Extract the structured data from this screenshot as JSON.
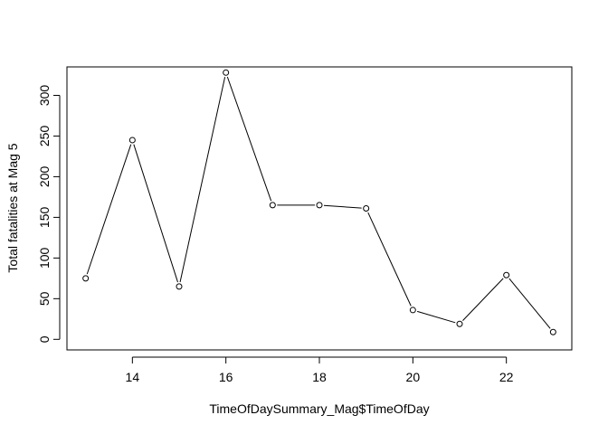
{
  "chart_data": {
    "type": "line",
    "title": "",
    "xlabel": "TimeOfDaySummary_Mag$TimeOfDay",
    "ylabel": "Total fatalities at Mag 5",
    "xlim": [
      12.6,
      23.4
    ],
    "ylim": [
      -13,
      335
    ],
    "x_ticks": [
      14,
      16,
      18,
      20,
      22
    ],
    "y_ticks": [
      0,
      50,
      100,
      150,
      200,
      250,
      300
    ],
    "grid": false,
    "legend": "none",
    "marker": "open-circle",
    "line_color": "#000000",
    "x": [
      13,
      14,
      15,
      16,
      17,
      18,
      19,
      20,
      21,
      22,
      23
    ],
    "y": [
      75,
      245,
      65,
      328,
      165,
      165,
      161,
      36,
      19,
      79,
      9
    ]
  }
}
